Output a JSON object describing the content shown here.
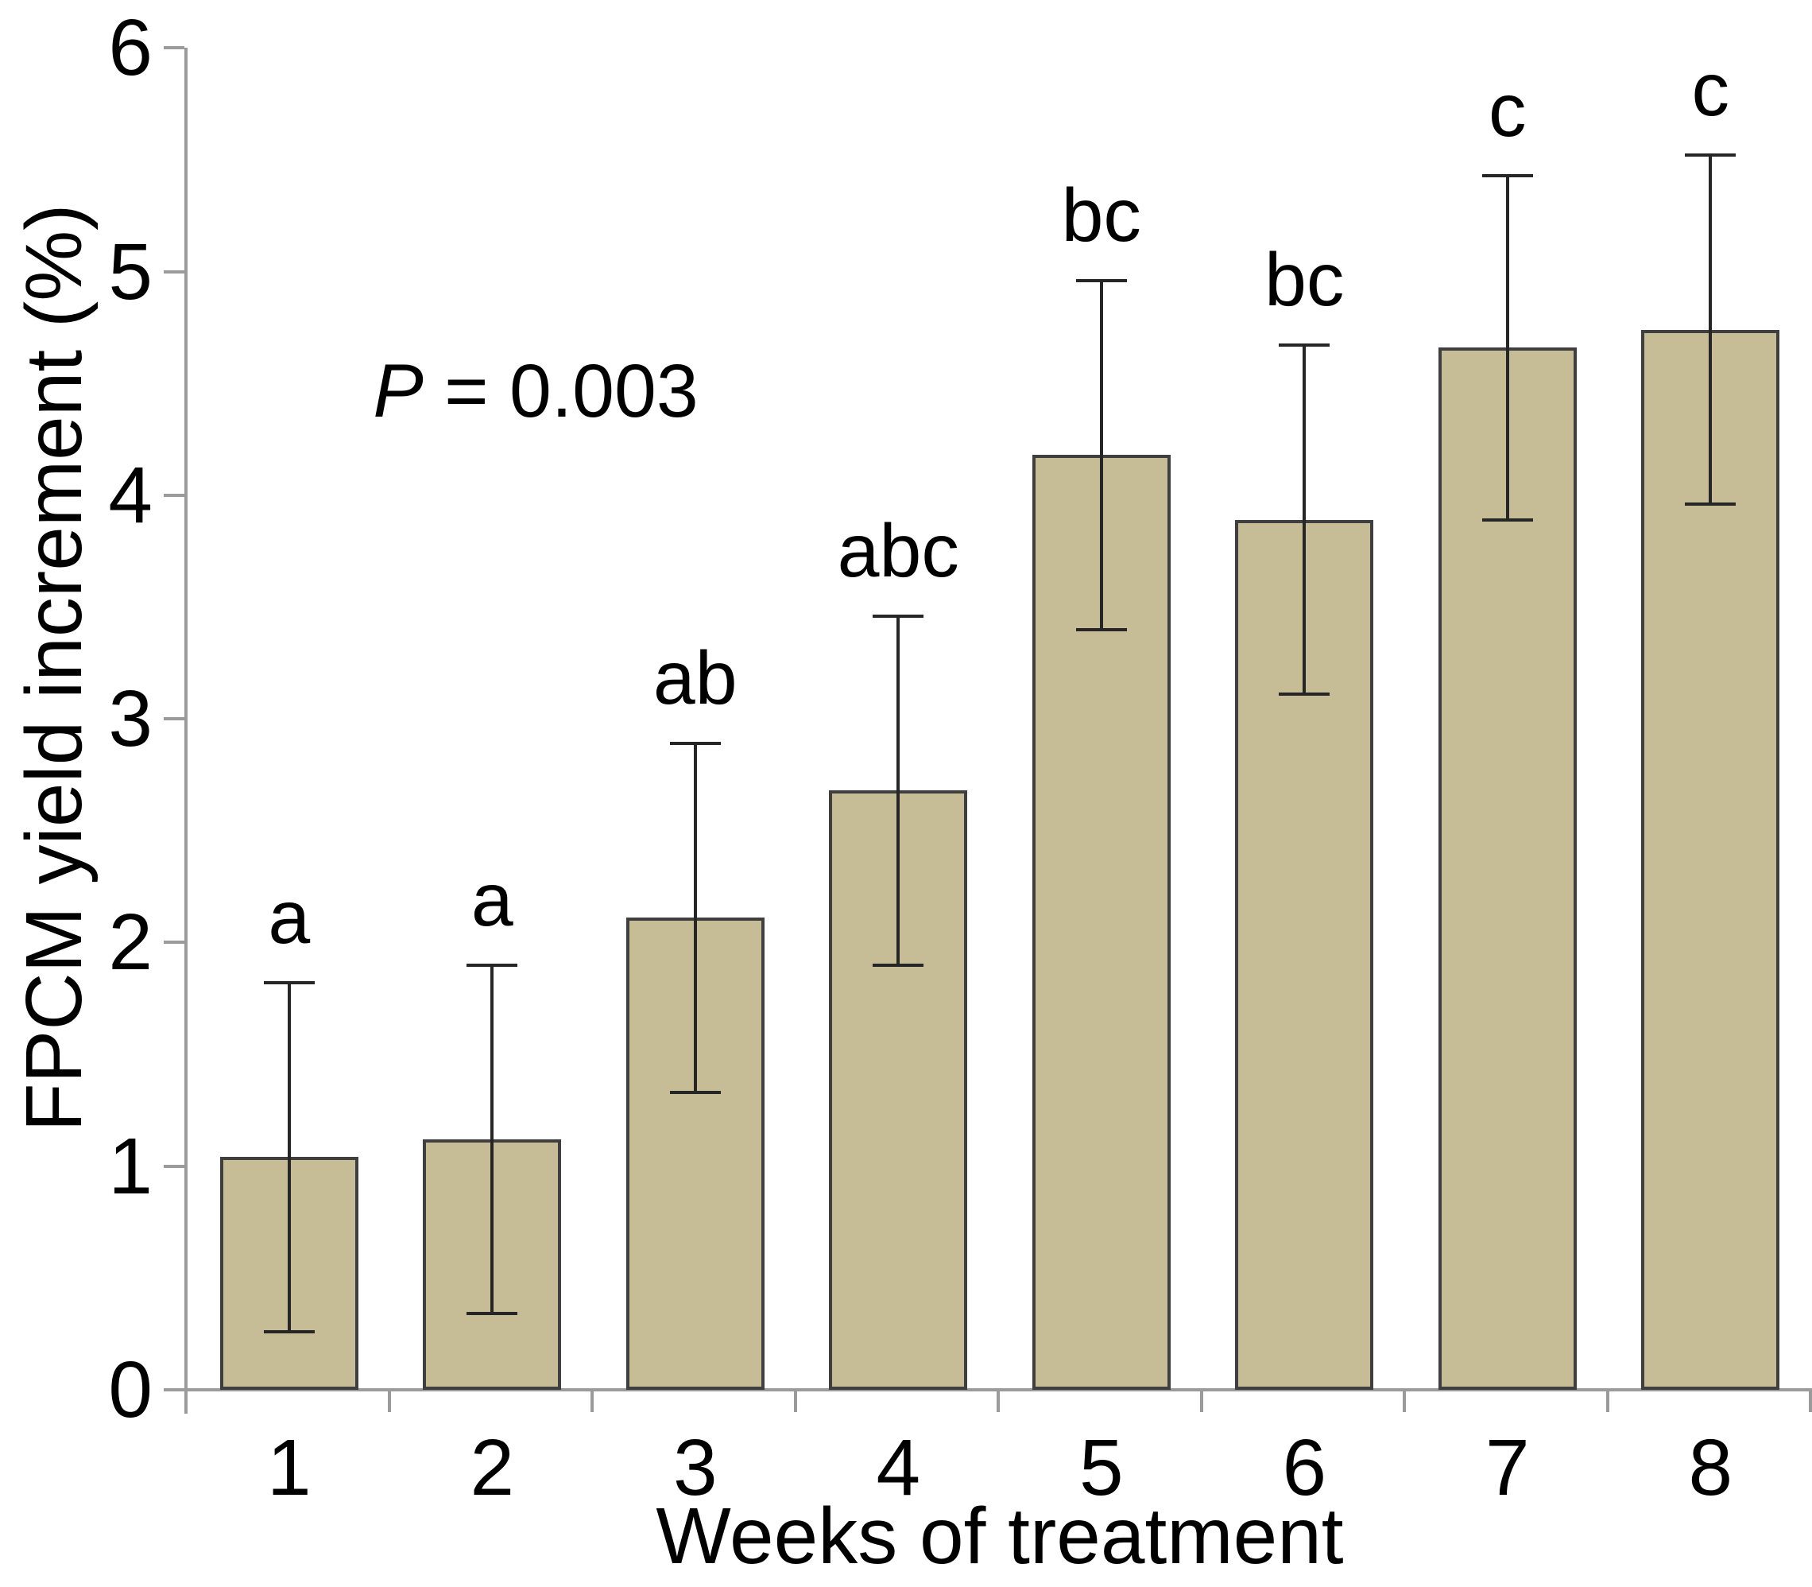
{
  "chart_data": {
    "type": "bar",
    "title": "",
    "xlabel": "Weeks of treatment",
    "ylabel": "FPCM yield increment (%)",
    "annotation": "P = 0.003",
    "annotation_p": "P",
    "annotation_rest": " = 0.003",
    "categories": [
      "1",
      "2",
      "3",
      "4",
      "5",
      "6",
      "7",
      "8"
    ],
    "values": [
      1.04,
      1.12,
      2.11,
      2.68,
      4.18,
      3.89,
      4.66,
      4.74
    ],
    "errors": [
      0.78,
      0.78,
      0.78,
      0.78,
      0.78,
      0.78,
      0.77,
      0.78
    ],
    "sig_letters": [
      "a",
      "a",
      "ab",
      "abc",
      "bc",
      "bc",
      "c",
      "c"
    ],
    "ylim": [
      0,
      6
    ],
    "yticks": [
      0,
      1,
      2,
      3,
      4,
      5,
      6
    ],
    "grid": false,
    "legend": null,
    "bar_color": "#C6BD96",
    "bar_border_color": "#3f3f3f",
    "error_color": "#262626",
    "axis_color": "#9b9b9b",
    "text_color": "#000000",
    "background_color": "#ffffff"
  }
}
